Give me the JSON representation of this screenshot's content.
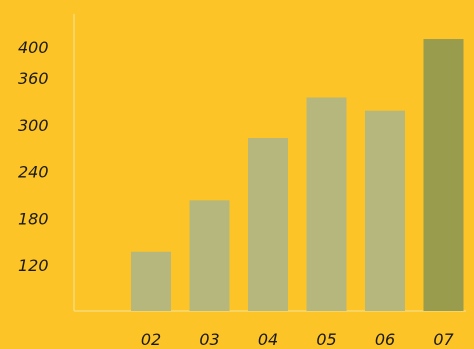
{
  "chart_data": {
    "type": "bar",
    "categories": [
      "02",
      "03",
      "04",
      "05",
      "06",
      "07"
    ],
    "values": [
      137,
      203,
      283,
      335,
      318,
      410
    ],
    "highlight_index": 5,
    "ylim": [
      60,
      420
    ],
    "yticks": [
      120,
      180,
      240,
      300,
      360,
      400
    ],
    "title": "",
    "xlabel": "",
    "ylabel": "",
    "grid": false,
    "colors": {
      "background": "#FDC427",
      "bar": "#B5B77C",
      "bar_highlight": "#989C4C",
      "axis": "#F3E39A",
      "text": "#1a1a1a"
    }
  }
}
